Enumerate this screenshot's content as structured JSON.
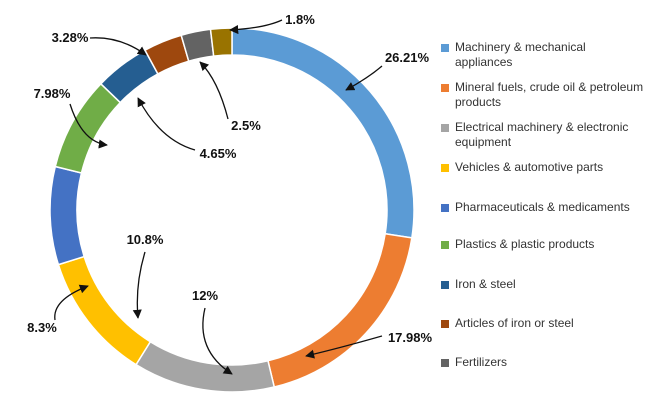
{
  "chart_data": {
    "type": "pie",
    "style": "donut",
    "legend_position": "right",
    "series": [
      {
        "name": "Machinery & mechanical appliances",
        "value": 26.21,
        "label": "26.21%",
        "color": "#5b9bd5"
      },
      {
        "name": "Mineral fuels, crude oil & petroleum products",
        "value": 17.98,
        "label": "17.98%",
        "color": "#ed7d31"
      },
      {
        "name": "Electrical machinery & electronic equipment",
        "value": 12,
        "label": "12%",
        "color": "#a5a5a5"
      },
      {
        "name": "Vehicles & automotive parts",
        "value": 10.8,
        "label": "10.8%",
        "color": "#ffc000"
      },
      {
        "name": "Pharmaceuticals & medicaments",
        "value": 8.3,
        "label": "8.3%",
        "color": "#4472c4"
      },
      {
        "name": "Plastics & plastic products",
        "value": 7.98,
        "label": "7.98%",
        "color": "#70ad47"
      },
      {
        "name": "Iron & steel",
        "value": 4.65,
        "label": "4.65%",
        "color": "#255e91"
      },
      {
        "name": "Articles of iron or steel",
        "value": 3.28,
        "label": "3.28%",
        "color": "#9e480e"
      },
      {
        "name": "Fertilizers",
        "value": 2.5,
        "label": "2.5%",
        "color": "#636363"
      },
      {
        "name": "",
        "value": 1.8,
        "label": "1.8%",
        "color": "#997300"
      }
    ]
  }
}
